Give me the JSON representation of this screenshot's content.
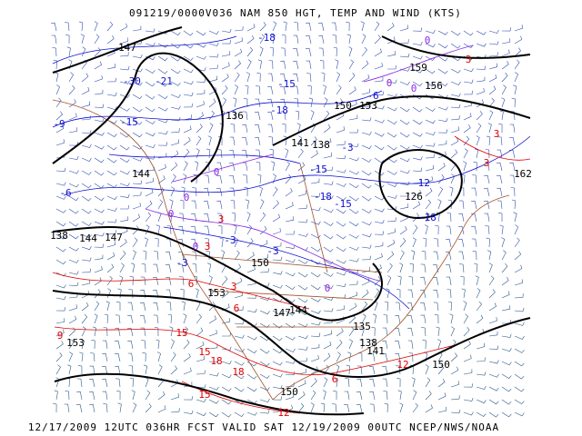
{
  "header": {
    "title": "091219/0000V036 NAM 850 HGT, TEMP AND WIND (KTS)"
  },
  "footer": {
    "text": "12/17/2009 12UTC 036HR FCST VALID SAT 12/19/2009 00UTC  NCEP/NWS/NOAA"
  },
  "height_labels": [
    "147",
    "159",
    "156",
    "150",
    "153",
    "141",
    "138",
    "136",
    "144",
    "138",
    "144",
    "147",
    "150",
    "153",
    "147",
    "144",
    "135",
    "138",
    "141",
    "150",
    "153",
    "150",
    "126",
    "162"
  ],
  "cold_temp_labels": [
    "-21",
    "-30",
    "-15",
    "-9",
    "-6",
    "-18",
    "-15",
    "-18",
    "-15",
    "-18",
    "-15",
    "-12",
    "-18",
    "-3",
    "-3",
    "-3",
    "-6",
    "-3"
  ],
  "warm_temp_labels": [
    "3",
    "3",
    "3",
    "6",
    "6",
    "9",
    "15",
    "15",
    "18",
    "18",
    "15",
    "12",
    "6",
    "12",
    "3",
    "3",
    "3"
  ],
  "zero_temp_labels": [
    "0",
    "0",
    "0",
    "0",
    "0",
    "0",
    "0",
    "0"
  ]
}
